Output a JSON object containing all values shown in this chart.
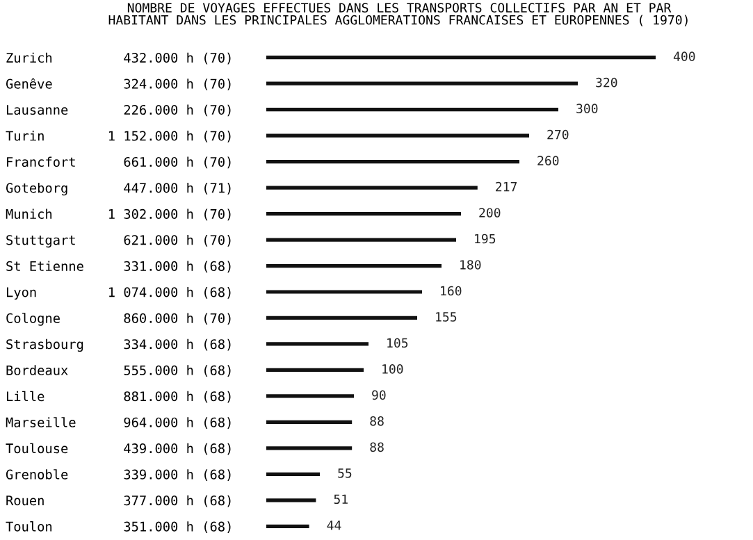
{
  "chart_data": {
    "type": "bar",
    "orientation": "horizontal",
    "title": "NOMBRE DE VOYAGES EFFECTUES DANS LES TRANSPORTS COLLECTIFS PAR AN ET PAR\nHABITANT DANS LES PRINCIPALES AGGLOMERATIONS FRANCAISES ET EUROPENNES ( 1970)",
    "categories": [
      "Zurich         432.000 h (70)",
      "Genêve         324.000 h (70)",
      "Lausanne       226.000 h (70)",
      "Turin        1 152.000 h (70)",
      "Francfort      661.000 h (70)",
      "Goteborg       447.000 h (71)",
      "Munich       1 302.000 h (70)",
      "Stuttgart      621.000 h (70)",
      "St Etienne     331.000 h (68)",
      "Lyon         1 074.000 h (68)",
      "Cologne        860.000 h (70)",
      "Strasbourg     334.000 h (68)",
      "Bordeaux       555.000 h (68)",
      "Lille          881.000 h (68)",
      "Marseille      964.000 h (68)",
      "Toulouse       439.000 h (68)",
      "Grenoble       339.000 h (68)",
      "Rouen          377.000 h (68)",
      "Toulon         351.000 h (68)"
    ],
    "values": [
      400,
      320,
      300,
      270,
      260,
      217,
      200,
      195,
      180,
      160,
      155,
      105,
      100,
      90,
      88,
      88,
      55,
      51,
      44
    ],
    "color": "#111111",
    "data_labels": true,
    "tick_labels": "y",
    "grid": false
  }
}
